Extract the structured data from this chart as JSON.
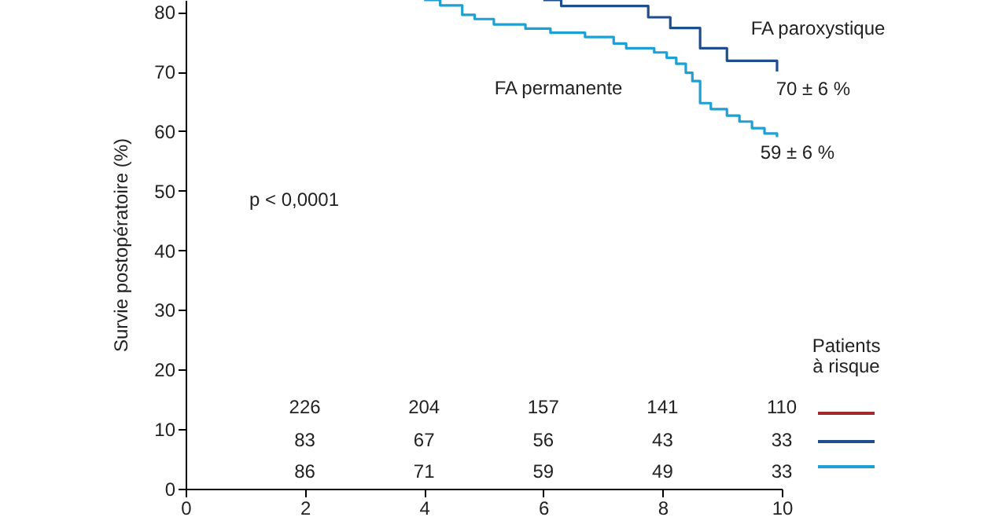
{
  "chart_data": {
    "type": "step",
    "ylabel": "Survie postopératoire (%)",
    "xlim": [
      0,
      10
    ],
    "xticks": [
      0,
      2,
      4,
      6,
      8,
      10
    ],
    "ylim": [
      0,
      82
    ],
    "yticks": [
      0,
      10,
      20,
      30,
      40,
      50,
      60,
      70,
      80
    ],
    "grid": false,
    "line_style": "solid",
    "marker": "none",
    "series": [
      {
        "color": "#a3282c"
      },
      {
        "name": "FA paroxystique",
        "color": "#1f4e8c",
        "x": [
          6.0,
          6.3,
          7.76,
          8.13,
          8.63,
          9.08,
          9.92
        ],
        "values": [
          82,
          81,
          79.1,
          77.3,
          73.9,
          71.8,
          70
        ]
      },
      {
        "name": "FA permanente",
        "color": "#1ea0d2",
        "x": [
          4.0,
          4.27,
          4.64,
          4.85,
          5.17,
          5.7,
          6.12,
          6.7,
          7.18,
          7.39,
          7.86,
          8.07,
          8.23,
          8.39,
          8.5,
          8.63,
          8.81,
          9.08,
          9.29,
          9.5,
          9.71,
          9.92
        ],
        "values": [
          82,
          81.1,
          79.5,
          78.8,
          77.9,
          77.2,
          76.5,
          75.8,
          74.7,
          73.9,
          73.2,
          72.3,
          71.3,
          69.8,
          68.4,
          64.7,
          63.7,
          62.6,
          61.6,
          60.5,
          59.6,
          59
        ]
      }
    ],
    "annotations": [
      {
        "text": "70 ± 6 %",
        "x": 9.92,
        "y": 70
      },
      {
        "text": "59 ± 6 %",
        "x": 9.92,
        "y": 59
      },
      "p < 0,0001",
      "Patients à risque",
      "226",
      "204",
      "157",
      "141",
      "110",
      "83",
      "67",
      "56",
      "43",
      "33",
      "86",
      "71",
      "59",
      "49",
      "33"
    ]
  }
}
